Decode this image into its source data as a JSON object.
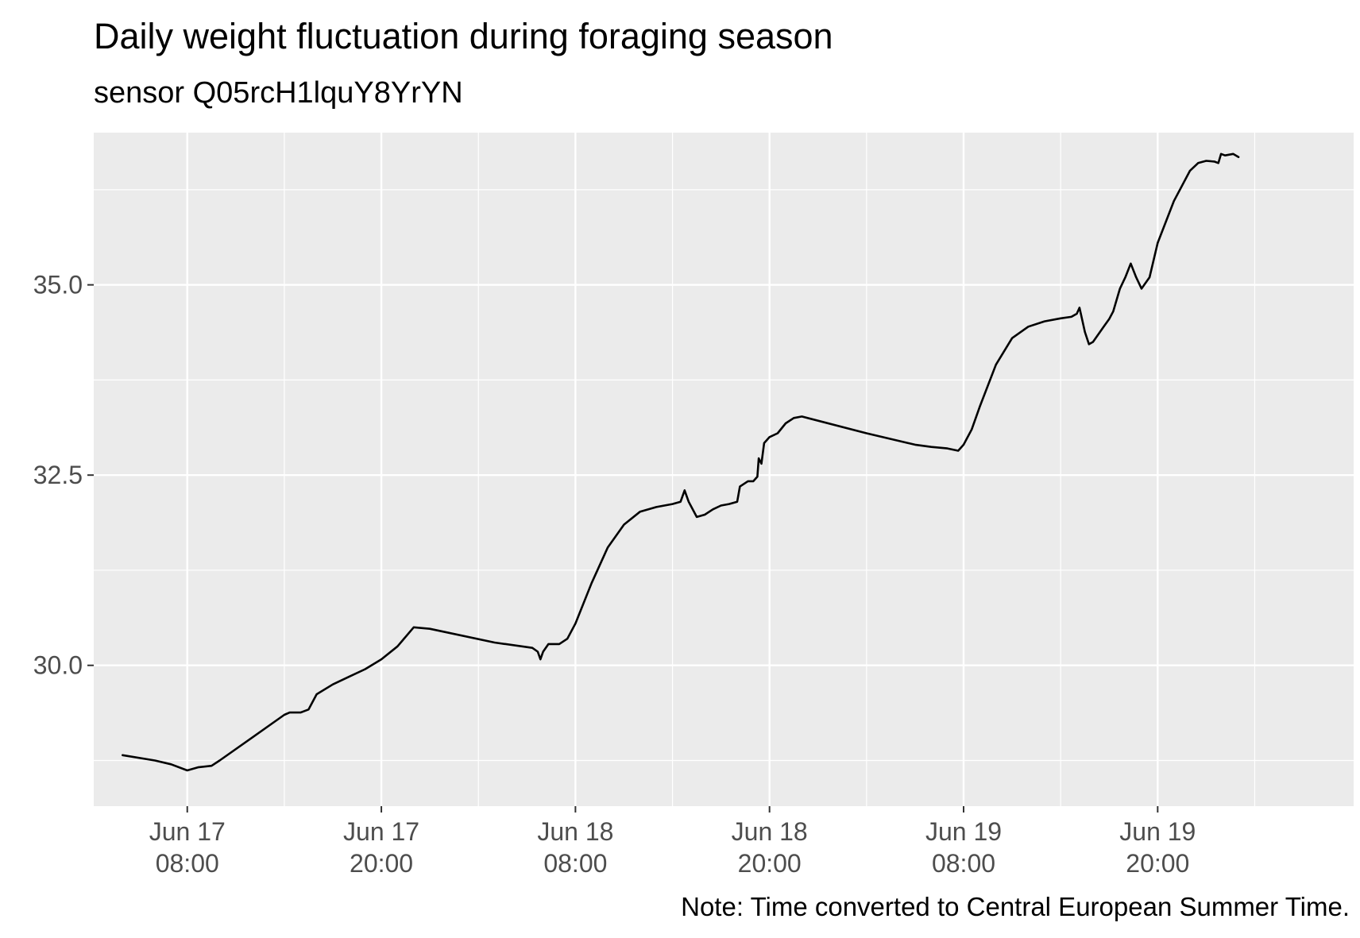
{
  "chart_data": {
    "type": "line",
    "title": "Daily weight fluctuation during foraging season",
    "subtitle": "sensor Q05rcH1lquY8YrYN",
    "caption": "Note: Time converted to Central European Summer Time.",
    "xlabel": "",
    "ylabel": "",
    "x_type": "datetime",
    "xlim": [
      "2024-06-17T02:13",
      "2024-06-20T08:07"
    ],
    "ylim": [
      28.15,
      37.0
    ],
    "x_ticks": [
      {
        "value": "2024-06-17T08:00",
        "label": [
          "Jun 17",
          "08:00"
        ]
      },
      {
        "value": "2024-06-17T20:00",
        "label": [
          "Jun 17",
          "20:00"
        ]
      },
      {
        "value": "2024-06-18T08:00",
        "label": [
          "Jun 18",
          "08:00"
        ]
      },
      {
        "value": "2024-06-18T20:00",
        "label": [
          "Jun 18",
          "20:00"
        ]
      },
      {
        "value": "2024-06-19T08:00",
        "label": [
          "Jun 19",
          "08:00"
        ]
      },
      {
        "value": "2024-06-19T20:00",
        "label": [
          "Jun 19",
          "20:00"
        ]
      }
    ],
    "x_minor_ticks": [
      "2024-06-17T02:00",
      "2024-06-17T14:00",
      "2024-06-18T02:00",
      "2024-06-18T14:00",
      "2024-06-19T02:00",
      "2024-06-19T14:00",
      "2024-06-20T02:00"
    ],
    "y_ticks": [
      30.0,
      32.5,
      35.0
    ],
    "y_tick_labels": [
      "30.0",
      "32.5",
      "35.0"
    ],
    "y_minor_ticks": [
      28.75,
      31.25,
      33.75,
      36.25
    ],
    "grid": true,
    "background": "#ebebeb",
    "grid_color": "#ffffff",
    "line_color": "#000000",
    "series": [
      {
        "points": [
          [
            "2024-06-17T04:00",
            28.82
          ],
          [
            "2024-06-17T06:00",
            28.75
          ],
          [
            "2024-06-17T07:00",
            28.7
          ],
          [
            "2024-06-17T08:00",
            28.62
          ],
          [
            "2024-06-17T08:40",
            28.66
          ],
          [
            "2024-06-17T09:30",
            28.68
          ],
          [
            "2024-06-17T10:00",
            28.75
          ],
          [
            "2024-06-17T12:00",
            29.05
          ],
          [
            "2024-06-17T14:00",
            29.35
          ],
          [
            "2024-06-17T14:20",
            29.38
          ],
          [
            "2024-06-17T15:00",
            29.38
          ],
          [
            "2024-06-17T15:30",
            29.42
          ],
          [
            "2024-06-17T16:00",
            29.62
          ],
          [
            "2024-06-17T17:00",
            29.75
          ],
          [
            "2024-06-17T18:00",
            29.85
          ],
          [
            "2024-06-17T19:00",
            29.95
          ],
          [
            "2024-06-17T20:00",
            30.08
          ],
          [
            "2024-06-17T21:00",
            30.25
          ],
          [
            "2024-06-17T22:00",
            30.5
          ],
          [
            "2024-06-17T23:00",
            30.48
          ],
          [
            "2024-06-18T03:00",
            30.3
          ],
          [
            "2024-06-18T05:20",
            30.23
          ],
          [
            "2024-06-18T05:40",
            30.18
          ],
          [
            "2024-06-18T05:50",
            30.08
          ],
          [
            "2024-06-18T06:00",
            30.18
          ],
          [
            "2024-06-18T06:20",
            30.28
          ],
          [
            "2024-06-18T07:00",
            30.28
          ],
          [
            "2024-06-18T07:30",
            30.35
          ],
          [
            "2024-06-18T08:00",
            30.55
          ],
          [
            "2024-06-18T09:00",
            31.08
          ],
          [
            "2024-06-18T10:00",
            31.55
          ],
          [
            "2024-06-18T11:00",
            31.85
          ],
          [
            "2024-06-18T12:00",
            32.02
          ],
          [
            "2024-06-18T13:00",
            32.08
          ],
          [
            "2024-06-18T14:00",
            32.12
          ],
          [
            "2024-06-18T14:30",
            32.15
          ],
          [
            "2024-06-18T14:45",
            32.3
          ],
          [
            "2024-06-18T15:00",
            32.15
          ],
          [
            "2024-06-18T15:30",
            31.95
          ],
          [
            "2024-06-18T16:00",
            31.98
          ],
          [
            "2024-06-18T16:30",
            32.05
          ],
          [
            "2024-06-18T17:00",
            32.1
          ],
          [
            "2024-06-18T17:30",
            32.12
          ],
          [
            "2024-06-18T18:00",
            32.15
          ],
          [
            "2024-06-18T18:10",
            32.35
          ],
          [
            "2024-06-18T18:40",
            32.42
          ],
          [
            "2024-06-18T19:00",
            32.42
          ],
          [
            "2024-06-18T19:15",
            32.48
          ],
          [
            "2024-06-18T19:20",
            32.72
          ],
          [
            "2024-06-18T19:30",
            32.65
          ],
          [
            "2024-06-18T19:40",
            32.92
          ],
          [
            "2024-06-18T20:00",
            33.0
          ],
          [
            "2024-06-18T20:30",
            33.05
          ],
          [
            "2024-06-18T21:00",
            33.18
          ],
          [
            "2024-06-18T21:30",
            33.25
          ],
          [
            "2024-06-18T22:00",
            33.27
          ],
          [
            "2024-06-19T02:00",
            33.05
          ],
          [
            "2024-06-19T05:00",
            32.9
          ],
          [
            "2024-06-19T06:00",
            32.87
          ],
          [
            "2024-06-19T07:00",
            32.85
          ],
          [
            "2024-06-19T07:40",
            32.82
          ],
          [
            "2024-06-19T08:00",
            32.9
          ],
          [
            "2024-06-19T08:30",
            33.1
          ],
          [
            "2024-06-19T09:00",
            33.4
          ],
          [
            "2024-06-19T10:00",
            33.95
          ],
          [
            "2024-06-19T11:00",
            34.3
          ],
          [
            "2024-06-19T12:00",
            34.45
          ],
          [
            "2024-06-19T13:00",
            34.52
          ],
          [
            "2024-06-19T14:00",
            34.56
          ],
          [
            "2024-06-19T14:40",
            34.58
          ],
          [
            "2024-06-19T15:00",
            34.62
          ],
          [
            "2024-06-19T15:10",
            34.7
          ],
          [
            "2024-06-19T15:30",
            34.38
          ],
          [
            "2024-06-19T15:45",
            34.22
          ],
          [
            "2024-06-19T16:00",
            34.25
          ],
          [
            "2024-06-19T16:40",
            34.45
          ],
          [
            "2024-06-19T17:00",
            34.55
          ],
          [
            "2024-06-19T17:15",
            34.65
          ],
          [
            "2024-06-19T17:40",
            34.95
          ],
          [
            "2024-06-19T18:00",
            35.1
          ],
          [
            "2024-06-19T18:20",
            35.28
          ],
          [
            "2024-06-19T18:40",
            35.1
          ],
          [
            "2024-06-19T19:00",
            34.95
          ],
          [
            "2024-06-19T19:30",
            35.1
          ],
          [
            "2024-06-19T20:00",
            35.55
          ],
          [
            "2024-06-19T21:00",
            36.1
          ],
          [
            "2024-06-19T22:00",
            36.5
          ],
          [
            "2024-06-19T22:30",
            36.6
          ],
          [
            "2024-06-19T23:00",
            36.63
          ],
          [
            "2024-06-19T23:30",
            36.62
          ],
          [
            "2024-06-19T23:45",
            36.6
          ],
          [
            "2024-06-19T23:55",
            36.72
          ],
          [
            "2024-06-20T00:10",
            36.7
          ],
          [
            "2024-06-20T00:40",
            36.72
          ],
          [
            "2024-06-20T01:00",
            36.68
          ]
        ]
      }
    ]
  }
}
